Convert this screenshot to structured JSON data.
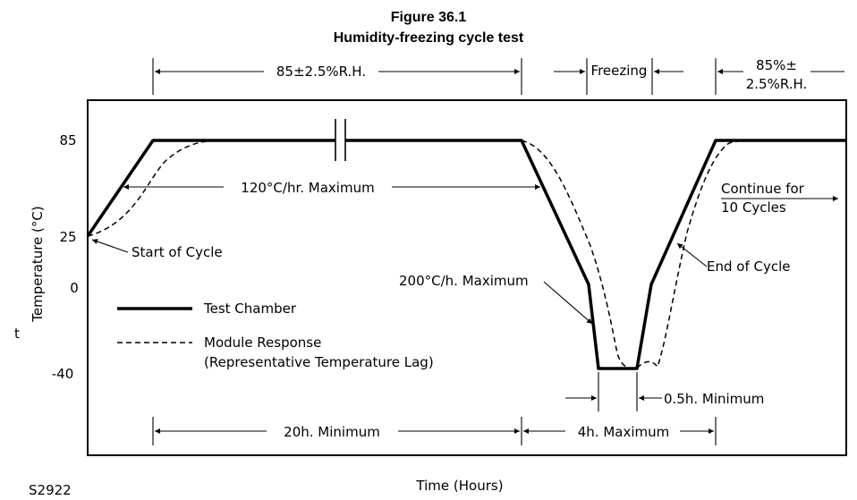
{
  "figure": {
    "number": "Figure 36.1",
    "title": "Humidity-freezing cycle test",
    "code": "S2922"
  },
  "axes": {
    "x_label": "Time (Hours)",
    "y_label_prefix": "t",
    "y_label": "Temperature (°C)",
    "y_ticks": [
      "85",
      "25",
      "0",
      "-40"
    ]
  },
  "legend": {
    "chamber": "Test Chamber",
    "module_line1": "Module Response",
    "module_line2": "(Representative Temperature Lag)"
  },
  "annotations": {
    "humidity_top": "85±2.5%R.H.",
    "freezing": "Freezing",
    "humidity_right_line1": "85%±",
    "humidity_right_line2": "2.5%R.H.",
    "ramp_up_rate": "120°C/hr. Maximum",
    "ramp_down_rate": "200°C/h. Maximum",
    "start_of_cycle": "Start of Cycle",
    "end_of_cycle": "End of Cycle",
    "continue_line1": "Continue for",
    "continue_line2": "10 Cycles",
    "dwell_cold": "0.5h. Minimum",
    "humidity_duration": "20h. Minimum",
    "freeze_duration": "4h. Maximum"
  }
}
